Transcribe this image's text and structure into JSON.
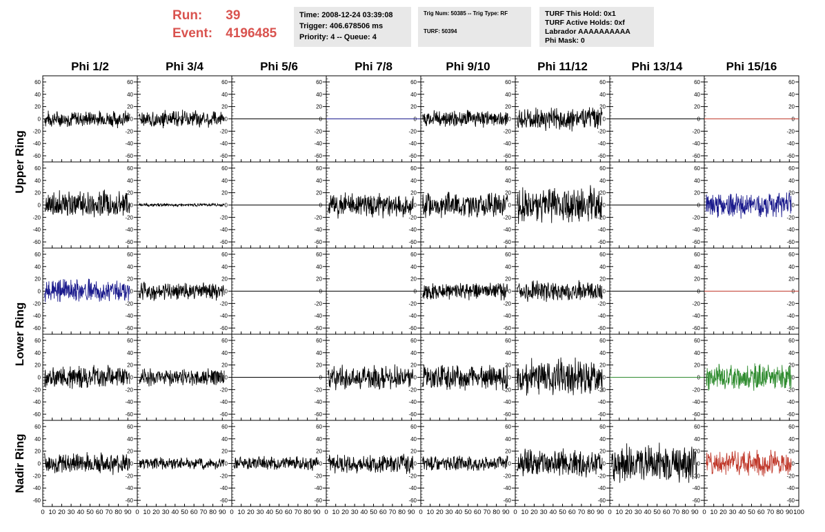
{
  "header": {
    "run_label": "Run:",
    "run_value": "39",
    "event_label": "Event:",
    "event_value": "4196485",
    "accent_color": "#d9534f"
  },
  "info1": {
    "time": "Time: 2008-12-24 03:39:08",
    "trigger": "Trigger: 406.678506 ms",
    "priority": "Priority: 4 -- Queue: 4"
  },
  "info2": {
    "trig": "Trig Num: 50385 -- Trig Type: RF",
    "turf": "TURF: 50394"
  },
  "info3": {
    "hold": "TURF This Hold: 0x1",
    "active": "TURF Active Holds: 0xf",
    "labrador": "Labrador AAAAAAAAAA",
    "phimask": "Phi Mask: 0"
  },
  "chart_data": {
    "type": "line",
    "columns": [
      "Phi 1/2",
      "Phi 3/4",
      "Phi 5/6",
      "Phi 7/8",
      "Phi 9/10",
      "Phi 11/12",
      "Phi 13/14",
      "Phi 15/16"
    ],
    "ring_groups": [
      {
        "name": "Upper Ring",
        "rows": [
          0,
          1
        ]
      },
      {
        "name": "Lower Ring",
        "rows": [
          2,
          3
        ]
      },
      {
        "name": "Nadir Ring",
        "rows": [
          4
        ]
      }
    ],
    "ylim": [
      -70,
      70
    ],
    "yticks": [
      -60,
      -40,
      -20,
      0,
      20,
      40,
      60
    ],
    "xlim": [
      0,
      100
    ],
    "xticks": [
      0,
      10,
      20,
      30,
      40,
      50,
      60,
      70,
      80,
      90,
      100
    ],
    "x_tick_labels_per_panel": [
      "0",
      "10",
      "20",
      "30",
      "40",
      "50",
      "60",
      "70",
      "80",
      "90",
      "100"
    ],
    "colors": {
      "black": "#000000",
      "blue": "#1a1a8c",
      "red": "#c0392b",
      "green": "#2e8b2e"
    },
    "panels": [
      [
        {
          "c": "black",
          "a": 11
        },
        {
          "c": "black",
          "a": 11
        },
        {
          "c": "black",
          "a": 0
        },
        {
          "c": "blue",
          "a": 0
        },
        {
          "c": "black",
          "a": 11
        },
        {
          "c": "black",
          "a": 16
        },
        {
          "c": "black",
          "a": 0
        },
        {
          "c": "red",
          "a": 0
        }
      ],
      [
        {
          "c": "black",
          "a": 18
        },
        {
          "c": "black",
          "a": 2
        },
        {
          "c": "black",
          "a": 0
        },
        {
          "c": "black",
          "a": 16
        },
        {
          "c": "black",
          "a": 17
        },
        {
          "c": "black",
          "a": 24
        },
        {
          "c": "black",
          "a": 0
        },
        {
          "c": "blue",
          "a": 17
        }
      ],
      [
        {
          "c": "blue",
          "a": 15
        },
        {
          "c": "black",
          "a": 12
        },
        {
          "c": "black",
          "a": 0
        },
        {
          "c": "black",
          "a": 0
        },
        {
          "c": "black",
          "a": 11
        },
        {
          "c": "black",
          "a": 13
        },
        {
          "c": "black",
          "a": 0
        },
        {
          "c": "red",
          "a": 0
        }
      ],
      [
        {
          "c": "black",
          "a": 15
        },
        {
          "c": "black",
          "a": 11
        },
        {
          "c": "black",
          "a": 0
        },
        {
          "c": "black",
          "a": 16
        },
        {
          "c": "black",
          "a": 17
        },
        {
          "c": "black",
          "a": 24
        },
        {
          "c": "green",
          "a": 0
        },
        {
          "c": "green",
          "a": 17
        }
      ],
      [
        {
          "c": "black",
          "a": 14
        },
        {
          "c": "black",
          "a": 8
        },
        {
          "c": "black",
          "a": 9
        },
        {
          "c": "black",
          "a": 13
        },
        {
          "c": "black",
          "a": 10
        },
        {
          "c": "black",
          "a": 18
        },
        {
          "c": "black",
          "a": 26
        },
        {
          "c": "red",
          "a": 17
        }
      ]
    ]
  }
}
